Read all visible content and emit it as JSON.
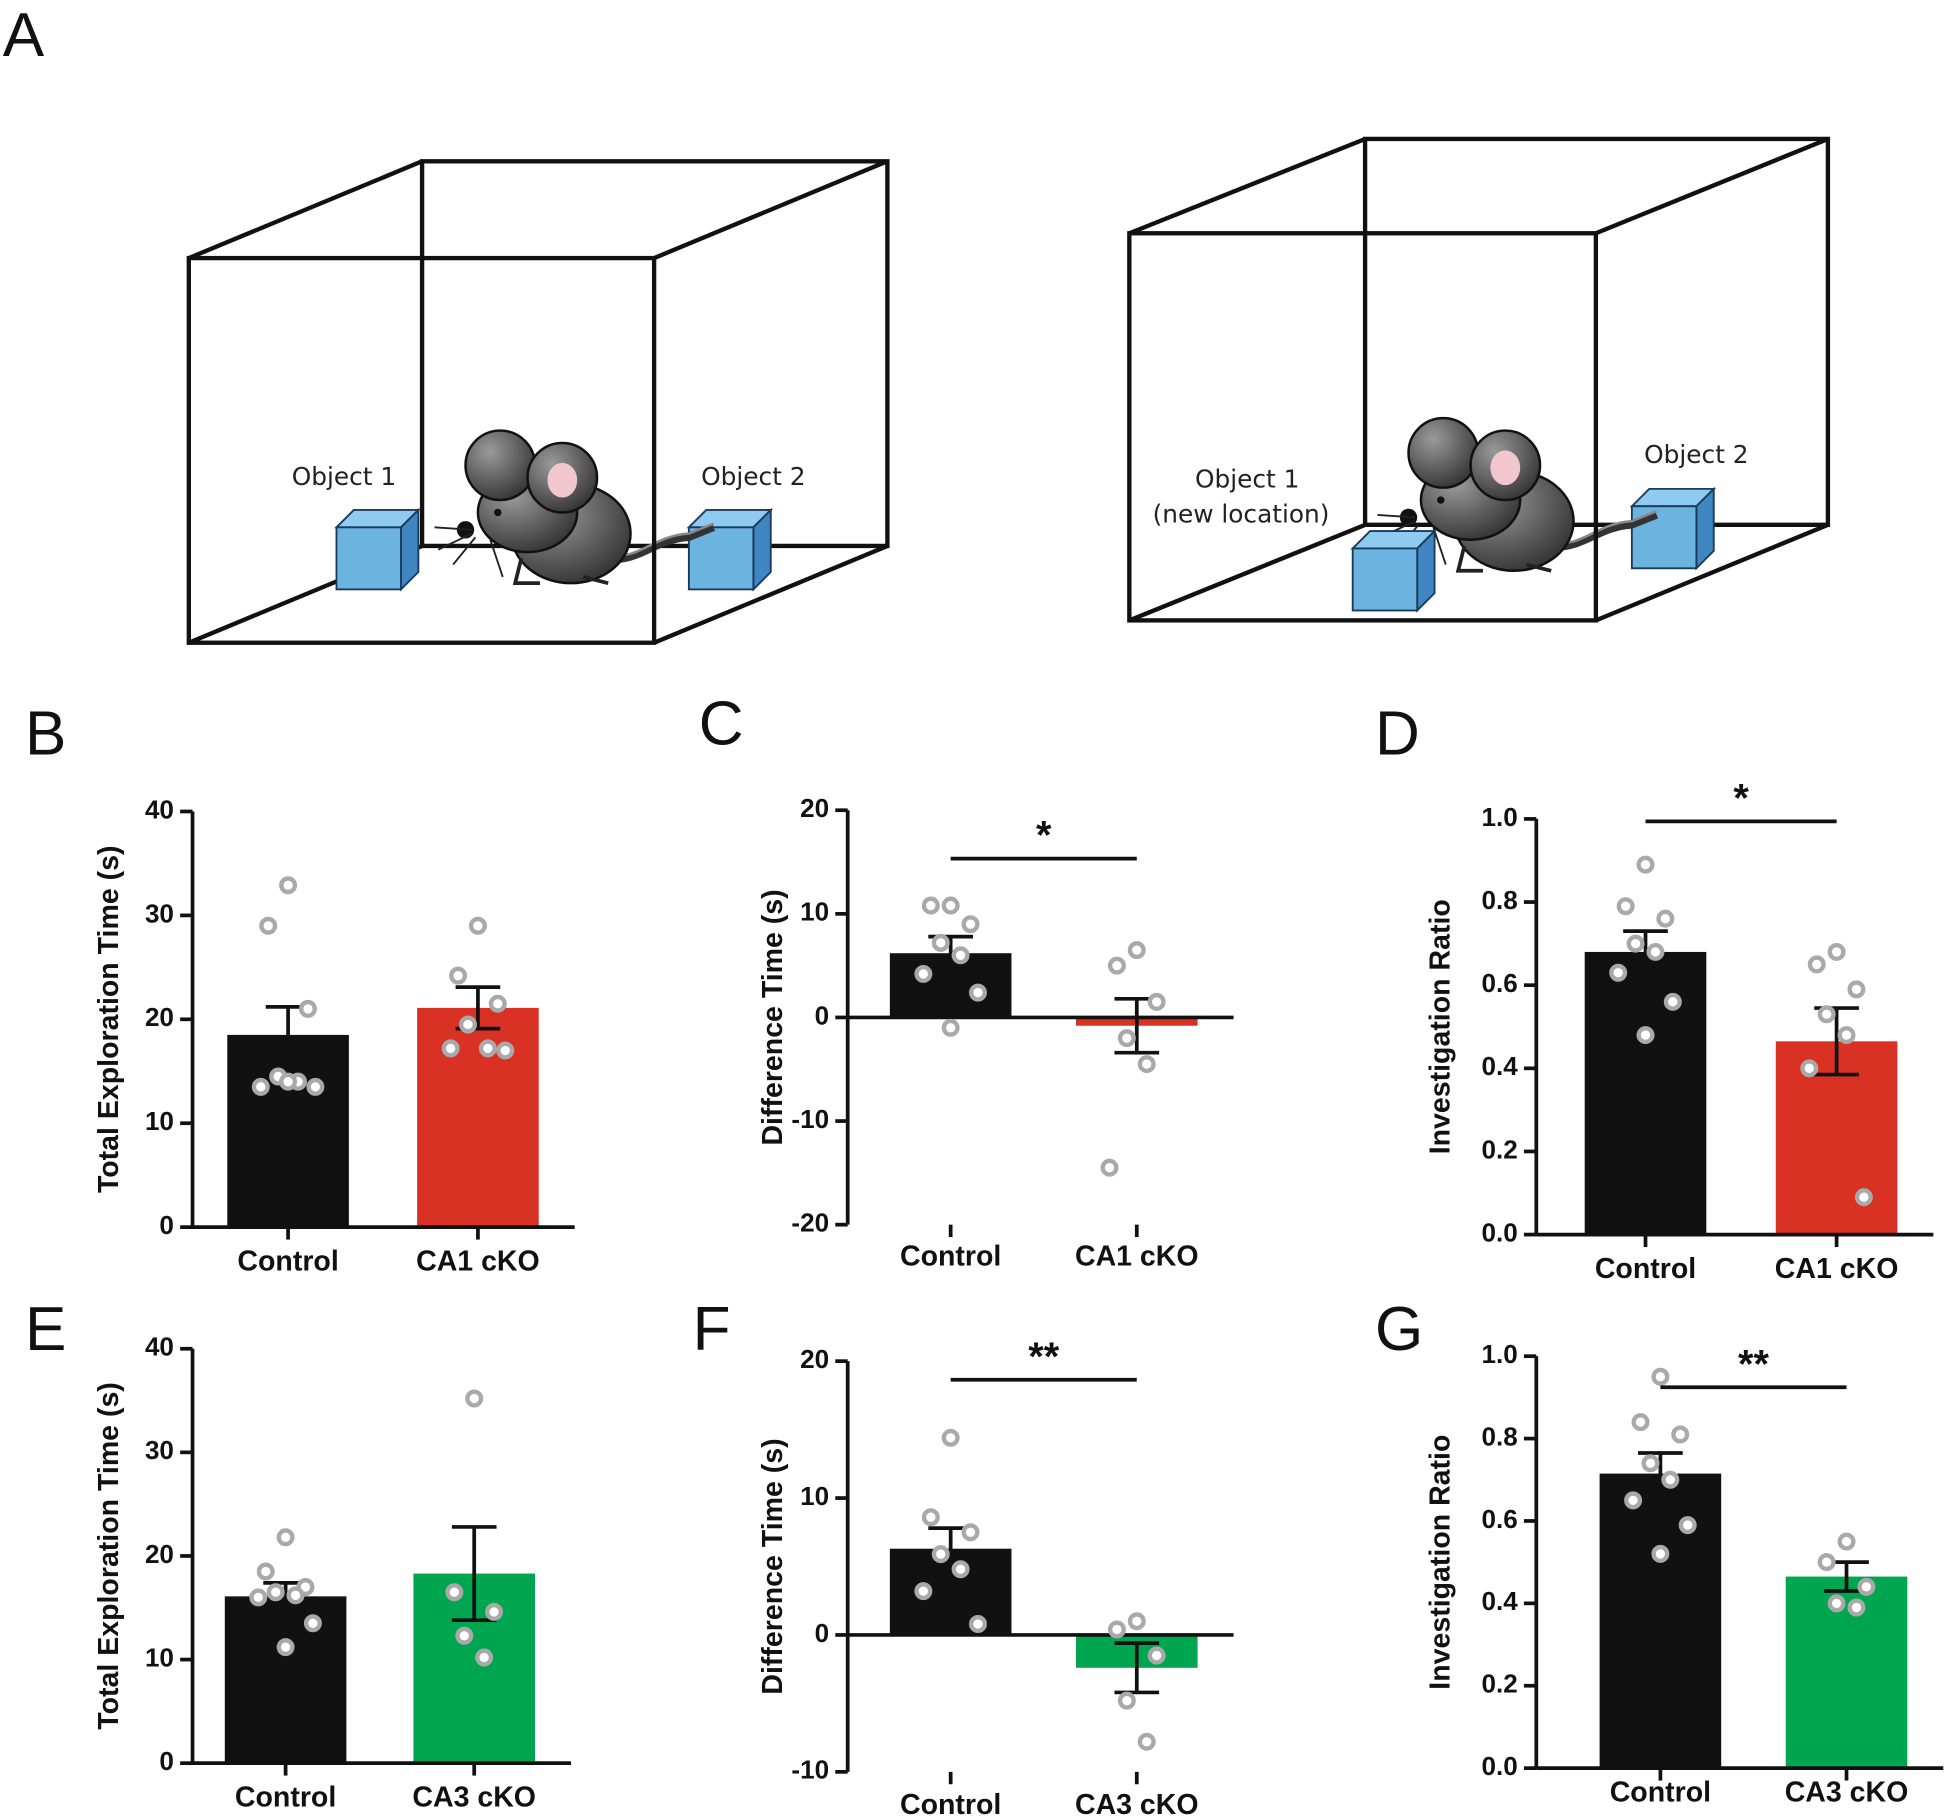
{
  "panel_a": {
    "label": "A",
    "left_box": {
      "object_1": "Object 1",
      "object_2": "Object 2"
    },
    "right_box": {
      "object_1_lines": [
        "Object 1",
        "(new location)"
      ],
      "object_2": "Object 2"
    }
  },
  "chart_data": [
    {
      "type": "bar",
      "panel": "B",
      "y_label": "Total Exploration Time (s)",
      "categories": [
        "Control",
        "CA1 cKO"
      ],
      "values": [
        18.5,
        21.1
      ],
      "errors": [
        2.7,
        2.0
      ],
      "colors": [
        "#111111",
        "#d93124"
      ],
      "points": [
        [
          32.9,
          29.0,
          21.0,
          14.5,
          14.0,
          13.5,
          13.5,
          14.0
        ],
        [
          29.0,
          24.2,
          21.5,
          19.5,
          17.2,
          17.2,
          17.0
        ]
      ],
      "ylim": [
        0,
        40
      ],
      "yticks": [
        0,
        10,
        20,
        30,
        40
      ]
    },
    {
      "type": "bar",
      "panel": "C",
      "y_label": "Difference Time (s)",
      "categories": [
        "Control",
        "CA1 cKO"
      ],
      "values": [
        6.2,
        -0.8
      ],
      "errors": [
        1.6,
        2.6
      ],
      "colors": [
        "#111111",
        "#d93124"
      ],
      "points": [
        [
          10.8,
          10.8,
          9.0,
          7.2,
          6.0,
          4.2,
          2.4,
          -1.0
        ],
        [
          6.5,
          5.0,
          1.5,
          -2.0,
          -4.5,
          -14.5
        ]
      ],
      "ylim": [
        -20,
        20
      ],
      "yticks": [
        -20,
        -10,
        0,
        10,
        20
      ],
      "significance": "*"
    },
    {
      "type": "bar",
      "panel": "D",
      "y_label": "Investigation Ratio",
      "categories": [
        "Control",
        "CA1 cKO"
      ],
      "values": [
        0.68,
        0.465
      ],
      "errors": [
        0.05,
        0.08
      ],
      "colors": [
        "#111111",
        "#d93124"
      ],
      "points": [
        [
          0.89,
          0.79,
          0.76,
          0.7,
          0.68,
          0.63,
          0.56,
          0.48
        ],
        [
          0.68,
          0.65,
          0.59,
          0.53,
          0.48,
          0.4,
          0.09
        ]
      ],
      "ylim": [
        0,
        1
      ],
      "yticks": [
        {
          "value": 0,
          "label": "0.0"
        },
        0.2,
        0.4,
        0.6,
        0.8,
        {
          "value": 1,
          "label": "1.0"
        }
      ],
      "significance": "*"
    },
    {
      "type": "bar",
      "panel": "E",
      "y_label": "Total Exploration Time (s)",
      "categories": [
        "Control",
        "CA3 cKO"
      ],
      "values": [
        16.1,
        18.3
      ],
      "errors": [
        1.3,
        4.5
      ],
      "colors": [
        "#111111",
        "#00a64f"
      ],
      "points": [
        [
          21.8,
          18.5,
          17.0,
          16.5,
          16.2,
          16.0,
          13.5,
          11.2
        ],
        [
          35.2,
          16.5,
          14.6,
          12.3,
          10.2
        ]
      ],
      "ylim": [
        0,
        40
      ],
      "yticks": [
        0,
        10,
        20,
        30,
        40
      ]
    },
    {
      "type": "bar",
      "panel": "F",
      "y_label": "Difference Time (s)",
      "categories": [
        "Control",
        "CA3 cKO"
      ],
      "values": [
        6.3,
        -2.4
      ],
      "errors": [
        1.5,
        1.8
      ],
      "colors": [
        "#111111",
        "#00a64f"
      ],
      "points": [
        [
          14.4,
          8.6,
          7.5,
          5.9,
          4.8,
          3.2,
          0.8
        ],
        [
          1.0,
          0.4,
          -1.5,
          -4.8,
          -7.8
        ]
      ],
      "ylim": [
        -10,
        20
      ],
      "yticks": [
        -10,
        0,
        10,
        20
      ],
      "significance": "**"
    },
    {
      "type": "bar",
      "panel": "G",
      "y_label": "Investigation Ratio",
      "categories": [
        "Control",
        "CA3 cKO"
      ],
      "values": [
        0.715,
        0.465
      ],
      "errors": [
        0.05,
        0.035
      ],
      "colors": [
        "#111111",
        "#00a64f"
      ],
      "points": [
        [
          0.95,
          0.84,
          0.81,
          0.74,
          0.7,
          0.65,
          0.59,
          0.52
        ],
        [
          0.55,
          0.5,
          0.44,
          0.4,
          0.39
        ]
      ],
      "ylim": [
        0,
        1
      ],
      "yticks": [
        {
          "value": 0,
          "label": "0.0"
        },
        0.2,
        0.4,
        0.6,
        0.8,
        {
          "value": 1,
          "label": "1.0"
        }
      ],
      "significance": "**"
    }
  ]
}
